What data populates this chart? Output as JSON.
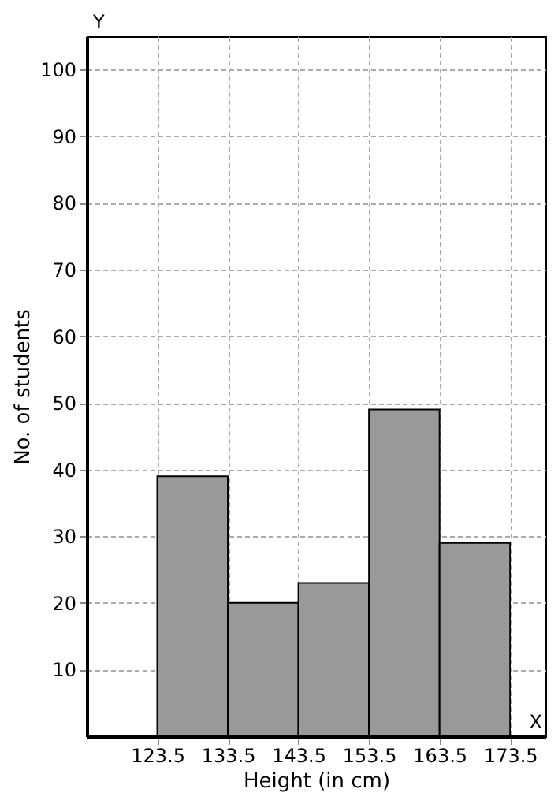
{
  "chart_data": {
    "type": "histogram",
    "xlabel": "Height (in cm)",
    "ylabel": "No. of students",
    "bins": [
      123.5,
      133.5,
      143.5,
      153.5,
      163.5,
      173.5
    ],
    "values": [
      39,
      20,
      23,
      49,
      29
    ],
    "color": "#999999",
    "xlim": [
      113.5,
      178.5
    ],
    "xticks": [
      123.5,
      133.5,
      143.5,
      153.5,
      163.5,
      173.5
    ],
    "ylim": [
      0,
      105
    ],
    "yticks": [
      10,
      20,
      30,
      40,
      50,
      60,
      70,
      80,
      90,
      100
    ],
    "annotations": [
      "Y",
      "X"
    ],
    "grid": true
  }
}
